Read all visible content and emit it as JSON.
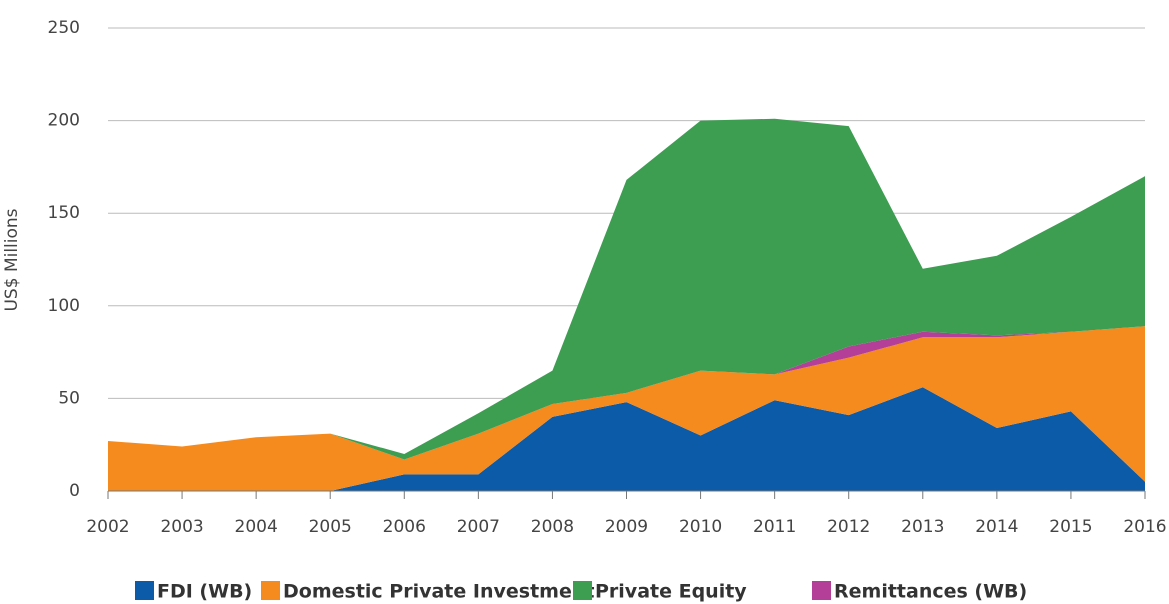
{
  "chart_data": {
    "type": "stacked_area",
    "y_label": "US$ Millions",
    "categories": [
      "2002",
      "2003",
      "2004",
      "2005",
      "2006",
      "2007",
      "2008",
      "2009",
      "2010",
      "2011",
      "2012",
      "2013",
      "2014",
      "2015",
      "2016"
    ],
    "series": [
      {
        "name": "FDI (WB)",
        "color": "#0b5ba8",
        "values": [
          0,
          0,
          0,
          0,
          9,
          9,
          40,
          48,
          30,
          49,
          41,
          56,
          34,
          43,
          5
        ]
      },
      {
        "name": "Domestic Private Investment",
        "color": "#f58a1f",
        "values": [
          27,
          24,
          29,
          31,
          8,
          22,
          7,
          5,
          35,
          14,
          31,
          27,
          49,
          43,
          84
        ]
      },
      {
        "name": "Private Equity",
        "color": "#3d9e52",
        "values": [
          0,
          0,
          0,
          0,
          3,
          11,
          18,
          115,
          135,
          138,
          119,
          34,
          43,
          62,
          81
        ]
      },
      {
        "name": "Remittances (WB)",
        "color": "#b43f98",
        "values": [
          0,
          0,
          0,
          0,
          0,
          0,
          0,
          0,
          0,
          0,
          6,
          3,
          1,
          0,
          0
        ]
      }
    ],
    "stack_order": [
      0,
      1,
      3,
      2
    ],
    "ylim": [
      0,
      250
    ],
    "yticks": [
      0,
      50,
      100,
      150,
      200,
      250
    ],
    "grid": true,
    "legend": "bottom"
  }
}
